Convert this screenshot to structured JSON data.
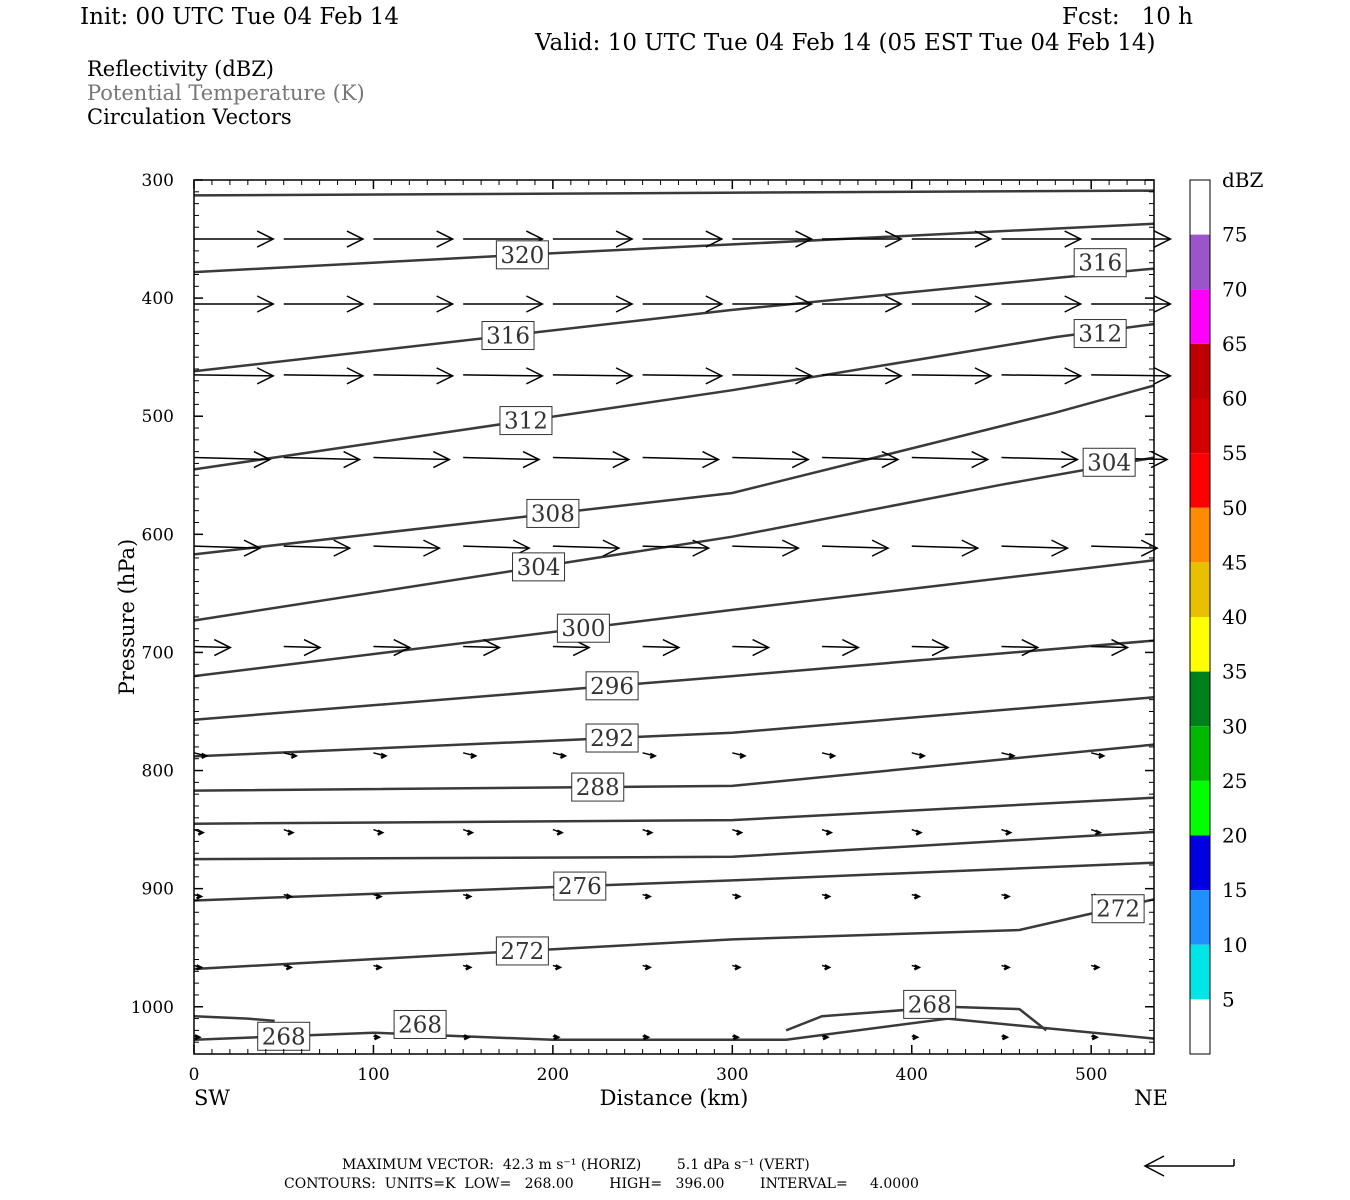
{
  "header": {
    "init": "Init: 00 UTC Tue 04 Feb 14",
    "fcst": "Fcst:   10 h",
    "valid": "Valid: 10 UTC Tue 04 Feb 14 (05 EST Tue 04 Feb 14)"
  },
  "legend": {
    "line1": "Reflectivity (dBZ)",
    "line2": "Potential Temperature (K)",
    "line3": "Circulation Vectors"
  },
  "footer": {
    "line1": "MAXIMUM VECTOR:  42.3 m s⁻¹ (HORIZ)        5.1 dPa s⁻¹ (VERT)",
    "line2": "CONTOURS:  UNITS=K  LOW=   268.00        HIGH=   396.00        INTERVAL=     4.0000"
  },
  "chart_data": {
    "type": "line",
    "xlabel": "Distance (km)",
    "ylabel": "Pressure (hPa)",
    "xlim": [
      0,
      535
    ],
    "ylim": [
      300,
      1040
    ],
    "y_reversed": true,
    "x_ticks": [
      0,
      100,
      200,
      300,
      400,
      500
    ],
    "y_ticks": [
      300,
      400,
      500,
      600,
      700,
      800,
      900,
      1000
    ],
    "x_end_labels": {
      "left": "SW",
      "right": "NE"
    },
    "colorbar": {
      "title": "dBZ",
      "labels": [
        "75",
        "70",
        "65",
        "60",
        "55",
        "50",
        "45",
        "40",
        "35",
        "30",
        "25",
        "20",
        "15",
        "10",
        "5"
      ],
      "colors": [
        "#ffffff",
        "#9955c9",
        "#ff00ff",
        "#c00000",
        "#d40000",
        "#ff0000",
        "#ff8c00",
        "#e8c000",
        "#ffff00",
        "#00801a",
        "#00b800",
        "#00ff00",
        "#0000e0",
        "#1e90ff",
        "#00e5e5",
        "#ffffff"
      ]
    },
    "series": [
      {
        "name": "",
        "label": "",
        "x": [
          0,
          535
        ],
        "y": [
          313,
          309
        ]
      },
      {
        "name": "320",
        "label": "320",
        "x": [
          0,
          200,
          535
        ],
        "y": [
          378,
          362,
          337
        ],
        "label_x": 183
      },
      {
        "name": "316",
        "label": "316",
        "x": [
          0,
          300,
          480,
          535
        ],
        "y": [
          462,
          410,
          383,
          375
        ],
        "label_x": 175,
        "label2": "316",
        "label2_x": 505,
        "label2_y": 370
      },
      {
        "name": "312",
        "label": "312",
        "x": [
          0,
          300,
          480,
          535
        ],
        "y": [
          545,
          478,
          433,
          422
        ],
        "label_x": 185,
        "label2": "312",
        "label2_x": 505,
        "label2_y": 430
      },
      {
        "name": "308",
        "label": "308",
        "x": [
          0,
          300,
          480,
          535
        ],
        "y": [
          617,
          565,
          497,
          474
        ],
        "label_x": 200
      },
      {
        "name": "304",
        "label": "304",
        "x": [
          0,
          300,
          450,
          535
        ],
        "y": [
          673,
          602,
          558,
          535
        ],
        "label_x": 192,
        "label2": "304",
        "label2_x": 510,
        "label2_y": 539
      },
      {
        "name": "300",
        "label": "300",
        "x": [
          0,
          300,
          535
        ],
        "y": [
          720,
          664,
          622
        ],
        "label_x": 217
      },
      {
        "name": "296",
        "label": "296",
        "x": [
          0,
          300,
          535
        ],
        "y": [
          757,
          720,
          690
        ],
        "label_x": 233
      },
      {
        "name": "292",
        "label": "292",
        "x": [
          0,
          300,
          535
        ],
        "y": [
          788,
          768,
          738
        ],
        "label_x": 233
      },
      {
        "name": "288",
        "label": "288",
        "x": [
          0,
          300,
          535
        ],
        "y": [
          817,
          813,
          778
        ],
        "label_x": 225
      },
      {
        "name": "",
        "label": "",
        "x": [
          0,
          300,
          535
        ],
        "y": [
          845,
          842,
          823
        ]
      },
      {
        "name": "",
        "label": "",
        "x": [
          0,
          300,
          535
        ],
        "y": [
          875,
          873,
          852
        ]
      },
      {
        "name": "276",
        "label": "276",
        "x": [
          0,
          300,
          535
        ],
        "y": [
          910,
          893,
          878
        ],
        "label_x": 215
      },
      {
        "name": "272",
        "label": "272",
        "x": [
          0,
          300,
          460,
          535
        ],
        "y": [
          968,
          943,
          935,
          909
        ],
        "label_x": 183,
        "label2": "272",
        "label2_x": 515,
        "label2_y": 917
      },
      {
        "name": "268",
        "label": "268",
        "x": [
          0,
          100,
          200,
          330,
          420,
          535
        ],
        "y": [
          1028,
          1022,
          1028,
          1028,
          1010,
          1027
        ],
        "label_x": 50,
        "label2": "268",
        "label2_x": 126,
        "label2_y": 1015,
        "label3": "268",
        "label3_x": 410,
        "label3_y": 998
      },
      {
        "name": "",
        "label": "",
        "x": [
          0,
          30,
          45
        ],
        "y": [
          1008,
          1010,
          1012
        ]
      },
      {
        "name": "",
        "label": "",
        "x": [
          330,
          350,
          420,
          460,
          475
        ],
        "y": [
          1020,
          1008,
          1000,
          1002,
          1020
        ]
      }
    ],
    "vectors": {
      "levels": [
        350,
        405,
        465,
        535,
        610,
        695,
        785,
        850,
        905,
        965,
        1025
      ],
      "x_spacing_km": 50,
      "u_lengths": [
        48,
        48,
        48,
        46,
        40,
        22,
        7,
        5,
        4,
        4,
        3
      ],
      "v_tilts": [
        0,
        0,
        1,
        2,
        2,
        1,
        3,
        3,
        2,
        2,
        1
      ]
    }
  }
}
